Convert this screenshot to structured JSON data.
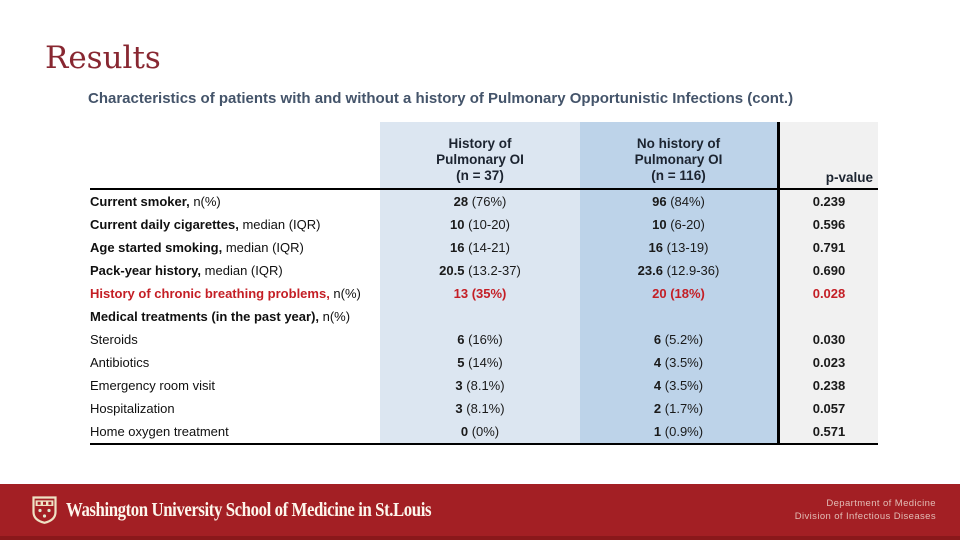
{
  "slide": {
    "title": "Results",
    "subtitle": "Characteristics of patients with and without a history of Pulmonary Opportunistic Infections (cont.)"
  },
  "table": {
    "col_headers": {
      "col1": [
        "History of",
        "Pulmonary OI",
        "(n = 37)"
      ],
      "col2": [
        "No history of",
        "Pulmonary OI",
        "(n = 116)"
      ],
      "pvalue": "p-value"
    },
    "rows": [
      {
        "label_bold": "Current smoker,",
        "label_rest": " n(%)",
        "c1": "28 (76%)",
        "c2": "96 (84%)",
        "p": "0.239",
        "highlight": false
      },
      {
        "label_bold": "Current daily cigarettes,",
        "label_rest": " median (IQR)",
        "c1": "10 (10-20)",
        "c2": "10 (6-20)",
        "p": "0.596",
        "highlight": false
      },
      {
        "label_bold": "Age started smoking,",
        "label_rest": " median (IQR)",
        "c1": "16 (14-21)",
        "c2": "16 (13-19)",
        "p": "0.791",
        "highlight": false
      },
      {
        "label_bold": "Pack-year history,",
        "label_rest": " median (IQR)",
        "c1": "20.5 (13.2-37)",
        "c2": "23.6 (12.9-36)",
        "p": "0.690",
        "highlight": false
      },
      {
        "label_bold": "History of chronic breathing problems,",
        "label_rest": " n(%)",
        "c1": "13 (35%)",
        "c2": "20 (18%)",
        "p": "0.028",
        "highlight": true
      },
      {
        "label_bold": "Medical treatments (in the past year),",
        "label_rest": " n(%)",
        "c1": "",
        "c2": "",
        "p": "",
        "highlight": false
      },
      {
        "label_bold": "",
        "label_rest": "Steroids",
        "c1": "6 (16%)",
        "c2": "6 (5.2%)",
        "p": "0.030",
        "highlight": false
      },
      {
        "label_bold": "",
        "label_rest": "Antibiotics",
        "c1": "5 (14%)",
        "c2": "4 (3.5%)",
        "p": "0.023",
        "highlight": false
      },
      {
        "label_bold": "",
        "label_rest": "Emergency room visit",
        "c1": "3 (8.1%)",
        "c2": "4 (3.5%)",
        "p": "0.238",
        "highlight": false
      },
      {
        "label_bold": "",
        "label_rest": "Hospitalization",
        "c1": "3 (8.1%)",
        "c2": "2 (1.7%)",
        "p": "0.057",
        "highlight": false
      },
      {
        "label_bold": "",
        "label_rest": "Home oxygen treatment",
        "c1": "0 (0%)",
        "c2": "1 (0.9%)",
        "p": "0.571",
        "highlight": false
      }
    ]
  },
  "footer": {
    "shield_icon": "washu-crest-shield-icon",
    "wordmark": "Washington University School of Medicine in St.Louis",
    "dept_line1": "Department of Medicine",
    "dept_line2": "Division of Infectious Diseases"
  },
  "colors": {
    "title_red": "#882731",
    "subtitle_slate": "#44546a",
    "col1_bg": "#dce6f1",
    "col2_bg": "#bdd3e9",
    "pvalue_bg": "#f1f1f1",
    "header_text": "#1c2430",
    "highlight_red": "#c41e25",
    "accent_red": "#a31f24",
    "footer_text": "#e2bdb6"
  }
}
